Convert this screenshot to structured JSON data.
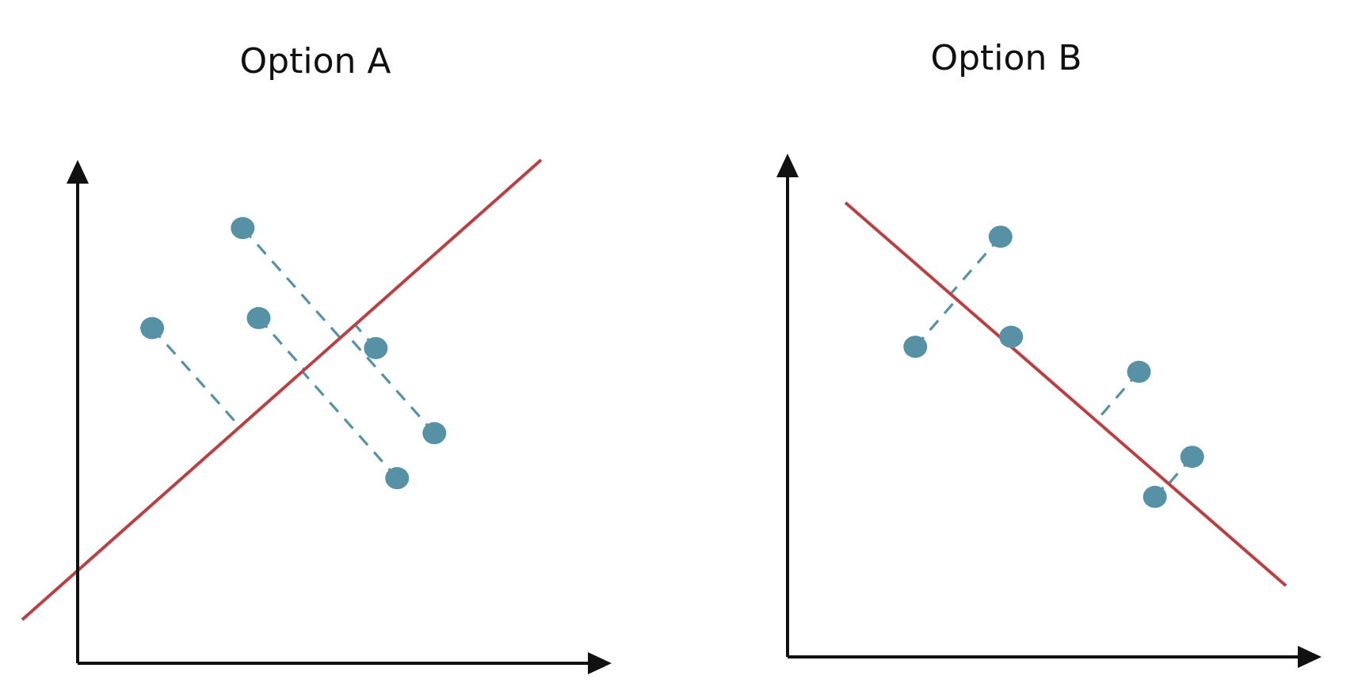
{
  "colors": {
    "fit_line": "#b94143",
    "points": "#5691a6",
    "projection": "#5691a6",
    "axes": "#111111"
  },
  "panels": [
    {
      "id": "option-a",
      "title": "Option A",
      "points": [
        {
          "x": 0.31,
          "y": 0.87,
          "proj_t": 0.56
        },
        {
          "x": 0.14,
          "y": 0.67,
          "proj_t": 0.37
        },
        {
          "x": 0.34,
          "y": 0.69,
          "proj_t": 0.45
        },
        {
          "x": 0.56,
          "y": 0.63,
          "proj_t": 0.51
        },
        {
          "x": 0.67,
          "y": 0.46,
          "proj_t": 0.5
        },
        {
          "x": 0.6,
          "y": 0.37,
          "proj_t": 0.45
        }
      ]
    },
    {
      "id": "option-b",
      "title": "Option B",
      "points": [
        {
          "x": 0.4,
          "y": 0.84,
          "proj_t": 0.23
        },
        {
          "x": 0.24,
          "y": 0.62,
          "proj_t": 0.23
        },
        {
          "x": 0.42,
          "y": 0.64,
          "proj_t": 0.37
        },
        {
          "x": 0.66,
          "y": 0.57,
          "proj_t": 0.55
        },
        {
          "x": 0.76,
          "y": 0.4,
          "proj_t": 0.72
        },
        {
          "x": 0.69,
          "y": 0.32,
          "proj_t": 0.72
        }
      ]
    }
  ]
}
